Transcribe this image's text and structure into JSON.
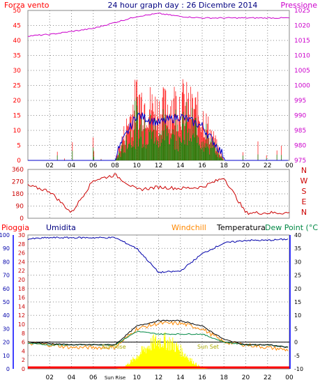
{
  "header": {
    "left_label": "Forza vento",
    "title": "24 hour graph day : 26 Dicembre 2014",
    "right_label": "Pressione"
  },
  "colors": {
    "wind": "#ff0000",
    "wind_avg": "#0000cc",
    "gust": "#008800",
    "pressure": "#cc00cc",
    "direction": "#cc0000",
    "humidity": "#0000aa",
    "windchill": "#ff8800",
    "temperature": "#000000",
    "dewpoint": "#008844",
    "rain": "#ff0000",
    "sun": "#ffff00",
    "rain_axis": "#0000ff"
  },
  "panel_wind": {
    "y_left_ticks": [
      "0",
      "5",
      "10",
      "15",
      "20",
      "25",
      "30",
      "35",
      "40",
      "45",
      "50"
    ],
    "y_right_ticks": [
      "975",
      "980",
      "985",
      "990",
      "995",
      "1000",
      "1005",
      "1010",
      "1015",
      "1020",
      "1025"
    ],
    "x_ticks": [
      "02",
      "04",
      "06",
      "08",
      "10",
      "12",
      "14",
      "16",
      "18",
      "20",
      "22",
      "00"
    ]
  },
  "panel_dir": {
    "y_ticks": [
      "360",
      "270",
      "180",
      "90",
      "0"
    ],
    "compass": [
      "N",
      "W",
      "S",
      "E",
      "N"
    ],
    "x_ticks": [
      "02",
      "04",
      "06",
      "08",
      "10",
      "12",
      "14",
      "16",
      "18",
      "20",
      "22",
      "00"
    ]
  },
  "panel_temp": {
    "labels": {
      "rain": "Pioggia",
      "humidity": "Umidita",
      "windchill": "Windchill",
      "temperature": "Temperatura",
      "dewpoint": "Dew Point (°C"
    },
    "humidity_ticks": [
      "100",
      "90",
      "80",
      "70",
      "60",
      "50",
      "40",
      "30",
      "20",
      "10",
      "0"
    ],
    "rain_ticks": [
      "30",
      "28",
      "26",
      "24",
      "22",
      "20",
      "18",
      "16",
      "14",
      "12",
      "10",
      "8",
      "6",
      "4",
      "2",
      "0"
    ],
    "temp_ticks": [
      "40",
      "35",
      "30",
      "25",
      "20",
      "15",
      "10",
      "5",
      "0",
      "-5",
      "-10"
    ],
    "x_ticks": [
      "02",
      "04",
      "06",
      "Sun Rise",
      "10",
      "12",
      "14",
      "16",
      "18",
      "20",
      "22",
      "00"
    ],
    "sunrise_label": "Sun Rise",
    "sunset_label": "Sun Set"
  },
  "chart_data": [
    {
      "type": "line",
      "title": "24 hour graph day : 26 Dicembre 2014",
      "xlabel": "",
      "ylabel": "Forza vento",
      "x": [
        "00",
        "02",
        "04",
        "06",
        "08",
        "10",
        "12",
        "14",
        "16",
        "18",
        "20",
        "22",
        "00"
      ],
      "ylim": [
        0,
        50
      ],
      "y2lim": [
        975,
        1025
      ],
      "series": [
        {
          "name": "Forza vento",
          "values": [
            0,
            0,
            0,
            0,
            0,
            25,
            20,
            24,
            18,
            0,
            0,
            0,
            0
          ]
        },
        {
          "name": "Pressione",
          "axis": "right",
          "values": [
            1016.5,
            1017,
            1018,
            1019,
            1021,
            1023,
            1024,
            1023,
            1022.5,
            1022.5,
            1022.5,
            1022.5,
            1022.5
          ]
        }
      ]
    },
    {
      "type": "line",
      "xlabel": "",
      "ylabel": "",
      "x": [
        "00",
        "02",
        "04",
        "06",
        "08",
        "10",
        "12",
        "14",
        "16",
        "18",
        "20",
        "22",
        "00"
      ],
      "ylim": [
        0,
        360
      ],
      "series": [
        {
          "name": "",
          "values": [
            240,
            200,
            40,
            280,
            320,
            210,
            230,
            220,
            230,
            300,
            40,
            40,
            40
          ]
        }
      ]
    },
    {
      "type": "line",
      "xlabel": "",
      "ylabel": "",
      "x": [
        "00",
        "02",
        "04",
        "06",
        "08",
        "10",
        "12",
        "14",
        "16",
        "18",
        "20",
        "22",
        "00"
      ],
      "ylim": [
        0,
        100
      ],
      "y2lim": [
        -10,
        40
      ],
      "series": [
        {
          "name": "Umidita",
          "axis": "humidity",
          "values": [
            97,
            98,
            98,
            98,
            98,
            90,
            72,
            73,
            86,
            94,
            96,
            96,
            97
          ]
        },
        {
          "name": "Temperatura",
          "axis": "right",
          "values": [
            0,
            -0.5,
            -1,
            -1,
            -1,
            6,
            8,
            8,
            6,
            1,
            -1,
            -1,
            -2
          ]
        },
        {
          "name": "Windchill",
          "axis": "right",
          "values": [
            -0.5,
            -1,
            -2,
            -2,
            -2,
            5,
            7,
            7,
            5,
            0,
            -1,
            -2,
            -3
          ]
        },
        {
          "name": "Dew Point (°C",
          "axis": "right",
          "values": [
            -0.5,
            -1,
            -1,
            -1,
            -1,
            4,
            3,
            3,
            3,
            0,
            -1,
            -1,
            -2
          ]
        },
        {
          "name": "Pioggia",
          "axis": "rain",
          "values": [
            0,
            0,
            0,
            0,
            0,
            0,
            0,
            0,
            0,
            0,
            0,
            0,
            0
          ]
        }
      ]
    }
  ]
}
